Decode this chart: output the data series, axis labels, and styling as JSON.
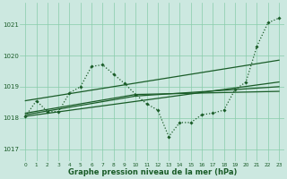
{
  "bg_color": "#cce8e0",
  "grid_color": "#88ccaa",
  "line_color": "#1a5c28",
  "xlabel": "Graphe pression niveau de la mer (hPa)",
  "xlim": [
    -0.5,
    23.5
  ],
  "ylim": [
    1016.6,
    1021.7
  ],
  "yticks": [
    1017,
    1018,
    1019,
    1020,
    1021
  ],
  "xticks": [
    0,
    1,
    2,
    3,
    4,
    5,
    6,
    7,
    8,
    9,
    10,
    11,
    12,
    13,
    14,
    15,
    16,
    17,
    18,
    19,
    20,
    21,
    22,
    23
  ],
  "s_main_x": [
    0,
    1,
    2,
    3,
    4,
    5,
    6,
    7,
    8,
    9,
    10,
    11,
    12,
    13,
    14,
    15,
    16,
    17,
    18,
    19,
    20,
    21,
    22,
    23
  ],
  "s_main_y": [
    1018.05,
    1018.55,
    1018.2,
    1018.2,
    1018.8,
    1019.0,
    1019.65,
    1019.7,
    1019.4,
    1019.1,
    1018.75,
    1018.45,
    1018.25,
    1017.4,
    1017.85,
    1017.85,
    1018.1,
    1018.15,
    1018.25,
    1018.9,
    1019.15,
    1020.3,
    1021.05,
    1021.2
  ],
  "s_line1_x": [
    0,
    23
  ],
  "s_line1_y": [
    1018.55,
    1019.85
  ],
  "s_line2_x": [
    0,
    23
  ],
  "s_line2_y": [
    1018.05,
    1019.15
  ],
  "s_line3_x": [
    0,
    10,
    23
  ],
  "s_line3_y": [
    1018.15,
    1018.75,
    1018.85
  ],
  "s_line4_x": [
    0,
    10,
    23
  ],
  "s_line4_y": [
    1018.1,
    1018.7,
    1019.0
  ]
}
